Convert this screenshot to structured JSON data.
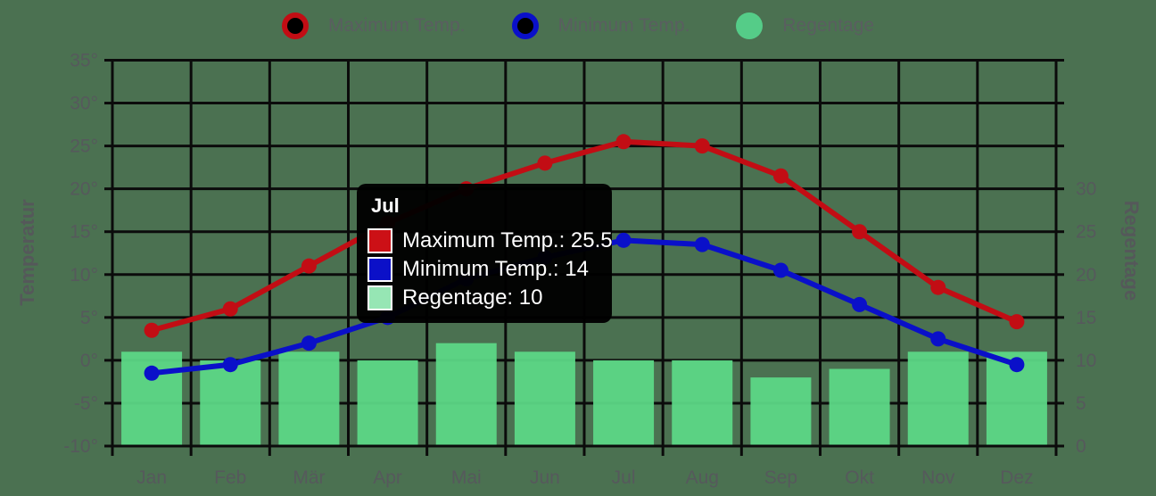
{
  "chart_data": {
    "type": "mixed",
    "categories": [
      "Jan",
      "Feb",
      "Mär",
      "Apr",
      "Mai",
      "Jun",
      "Jul",
      "Aug",
      "Sep",
      "Okt",
      "Nov",
      "Dez"
    ],
    "series": [
      {
        "name": "Maximum Temp.",
        "type": "line",
        "axis": "left",
        "color": "#c20d14",
        "values": [
          3.5,
          6,
          11,
          16,
          20,
          23,
          25.5,
          25,
          21.5,
          15,
          8.5,
          4.5
        ]
      },
      {
        "name": "Minimum Temp.",
        "type": "line",
        "axis": "left",
        "color": "#0a10c9",
        "values": [
          -1.5,
          -0.5,
          2,
          5,
          9.5,
          12,
          14,
          13.5,
          10.5,
          6.5,
          2.5,
          -0.5
        ]
      },
      {
        "name": "Regentage",
        "type": "bar",
        "axis": "right",
        "color": "#5cd786",
        "values": [
          11,
          10,
          11,
          10,
          12,
          11,
          10,
          10,
          8,
          9,
          11,
          11
        ]
      }
    ],
    "left_axis": {
      "title": "Temperatur",
      "min": -10,
      "max": 35,
      "step": 5,
      "ticks": [
        "35°",
        "30°",
        "25°",
        "20°",
        "15°",
        "10°",
        "5°",
        "0°",
        "-5°",
        "-10°"
      ],
      "tick_values": [
        35,
        30,
        25,
        20,
        15,
        10,
        5,
        0,
        -5,
        -10
      ]
    },
    "right_axis": {
      "title": "Regentage",
      "min": 0,
      "max": 45,
      "step": 5,
      "ticks": [
        "30",
        "25",
        "20",
        "15",
        "10",
        "5",
        "0"
      ],
      "tick_values": [
        30,
        25,
        20,
        15,
        10,
        5,
        0
      ]
    },
    "grid": true,
    "legend_position": "top"
  },
  "legend": {
    "items": [
      {
        "label": "Maximum Temp.",
        "marker": "ring",
        "color": "#c20d14"
      },
      {
        "label": "Minimum Temp.",
        "marker": "ring",
        "color": "#0a10c9"
      },
      {
        "label": "Regentage",
        "marker": "dot",
        "color": "#55cc88"
      }
    ]
  },
  "tooltip": {
    "title": "Jul",
    "rows": [
      {
        "label": "Maximum Temp.: 25.5",
        "swatch": "#cc1016"
      },
      {
        "label": "Minimum Temp.: 14",
        "swatch": "#0b10c8"
      },
      {
        "label": "Regentage: 10",
        "swatch": "#96e6b4"
      }
    ]
  },
  "colors": {
    "background": "#4b7151",
    "grid": "#0b0b0b",
    "tick_text": "#56595c",
    "axis_title_text": "#55585a",
    "tooltip_background": "#000000",
    "tooltip_text": "#ffffff"
  }
}
